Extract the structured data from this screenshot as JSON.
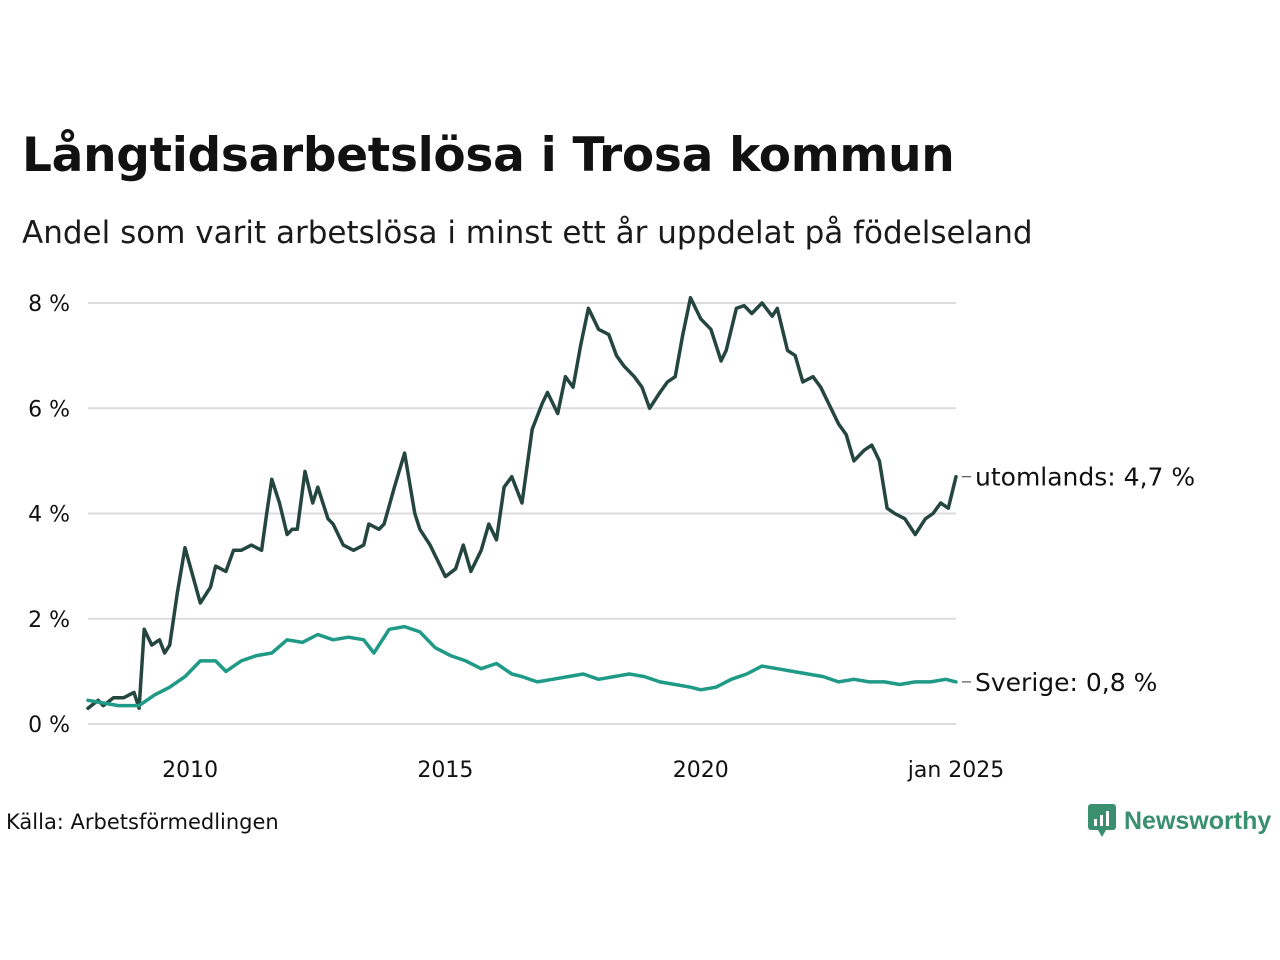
{
  "title": "Långtidsarbetslösa i Trosa kommun",
  "subtitle": "Andel som varit arbetslösa i minst ett år uppdelat på födelseland",
  "source": "Källa: Arbetsförmedlingen",
  "brand": {
    "name": "Newsworthy",
    "icon": "newsworthy-logo-icon",
    "color": "#3a8f6e"
  },
  "chart_data": {
    "type": "line",
    "title": "Långtidsarbetslösa i Trosa kommun",
    "subtitle": "Andel som varit arbetslösa i minst ett år uppdelat på födelseland",
    "xlabel": "",
    "ylabel": "",
    "xlim": [
      2008.0,
      2025.0
    ],
    "ylim": [
      0,
      8
    ],
    "grid": true,
    "legend": "none (end labels)",
    "y_ticks": [
      0,
      2,
      4,
      6,
      8
    ],
    "y_tick_labels": [
      "0 %",
      "2 %",
      "4 %",
      "6 %",
      "8 %"
    ],
    "x_ticks": [
      2010,
      2015,
      2020,
      2025
    ],
    "x_tick_labels": [
      "2010",
      "2015",
      "2020",
      "jan 2025"
    ],
    "series": [
      {
        "name": "utomlands",
        "color": "#25463f",
        "end_label": "utomlands: 4,7 %",
        "x": [
          2008.0,
          2008.2,
          2008.3,
          2008.5,
          2008.7,
          2008.9,
          2009.0,
          2009.1,
          2009.25,
          2009.4,
          2009.5,
          2009.6,
          2009.75,
          2009.9,
          2010.0,
          2010.2,
          2010.4,
          2010.5,
          2010.7,
          2010.85,
          2011.0,
          2011.2,
          2011.4,
          2011.5,
          2011.6,
          2011.75,
          2011.9,
          2012.0,
          2012.1,
          2012.25,
          2012.4,
          2012.5,
          2012.7,
          2012.8,
          2013.0,
          2013.2,
          2013.4,
          2013.5,
          2013.7,
          2013.8,
          2014.0,
          2014.2,
          2014.4,
          2014.5,
          2014.7,
          2014.85,
          2015.0,
          2015.2,
          2015.35,
          2015.5,
          2015.7,
          2015.85,
          2016.0,
          2016.15,
          2016.3,
          2016.5,
          2016.7,
          2016.9,
          2017.0,
          2017.2,
          2017.35,
          2017.5,
          2017.65,
          2017.8,
          2018.0,
          2018.2,
          2018.35,
          2018.5,
          2018.7,
          2018.85,
          2019.0,
          2019.2,
          2019.35,
          2019.5,
          2019.65,
          2019.8,
          2020.0,
          2020.2,
          2020.4,
          2020.5,
          2020.7,
          2020.85,
          2021.0,
          2021.2,
          2021.4,
          2021.5,
          2021.7,
          2021.85,
          2022.0,
          2022.2,
          2022.35,
          2022.5,
          2022.7,
          2022.85,
          2023.0,
          2023.2,
          2023.35,
          2023.5,
          2023.65,
          2023.8,
          2024.0,
          2024.2,
          2024.4,
          2024.55,
          2024.7,
          2024.85,
          2025.0
        ],
        "y": [
          0.3,
          0.45,
          0.35,
          0.5,
          0.5,
          0.6,
          0.3,
          1.8,
          1.5,
          1.6,
          1.35,
          1.5,
          2.5,
          3.35,
          3.0,
          2.3,
          2.6,
          3.0,
          2.9,
          3.3,
          3.3,
          3.4,
          3.3,
          4.0,
          4.65,
          4.2,
          3.6,
          3.7,
          3.7,
          4.8,
          4.2,
          4.5,
          3.9,
          3.8,
          3.4,
          3.3,
          3.4,
          3.8,
          3.7,
          3.8,
          4.5,
          5.15,
          4.0,
          3.7,
          3.4,
          3.1,
          2.8,
          2.95,
          3.4,
          2.9,
          3.3,
          3.8,
          3.5,
          4.5,
          4.7,
          4.2,
          5.6,
          6.1,
          6.3,
          5.9,
          6.6,
          6.4,
          7.2,
          7.9,
          7.5,
          7.4,
          7.0,
          6.8,
          6.6,
          6.4,
          6.0,
          6.3,
          6.5,
          6.6,
          7.4,
          8.1,
          7.7,
          7.5,
          6.9,
          7.1,
          7.9,
          7.95,
          7.8,
          8.0,
          7.75,
          7.9,
          7.1,
          7.0,
          6.5,
          6.6,
          6.4,
          6.1,
          5.7,
          5.5,
          5.0,
          5.2,
          5.3,
          5.0,
          4.1,
          4.0,
          3.9,
          3.6,
          3.9,
          4.0,
          4.2,
          4.1,
          4.7
        ]
      },
      {
        "name": "Sverige",
        "color": "#1f9a86",
        "end_label": "Sverige: 0,8 %",
        "x": [
          2008.0,
          2008.3,
          2008.6,
          2009.0,
          2009.3,
          2009.6,
          2009.9,
          2010.2,
          2010.5,
          2010.7,
          2011.0,
          2011.3,
          2011.6,
          2011.9,
          2012.2,
          2012.5,
          2012.8,
          2013.1,
          2013.4,
          2013.6,
          2013.9,
          2014.2,
          2014.5,
          2014.8,
          2015.1,
          2015.4,
          2015.7,
          2016.0,
          2016.3,
          2016.5,
          2016.8,
          2017.1,
          2017.4,
          2017.7,
          2018.0,
          2018.3,
          2018.6,
          2018.9,
          2019.2,
          2019.5,
          2019.8,
          2020.0,
          2020.3,
          2020.6,
          2020.9,
          2021.2,
          2021.5,
          2021.8,
          2022.1,
          2022.4,
          2022.7,
          2023.0,
          2023.3,
          2023.6,
          2023.9,
          2024.2,
          2024.5,
          2024.8,
          2025.0
        ],
        "y": [
          0.45,
          0.4,
          0.35,
          0.35,
          0.55,
          0.7,
          0.9,
          1.2,
          1.2,
          1.0,
          1.2,
          1.3,
          1.35,
          1.6,
          1.55,
          1.7,
          1.6,
          1.65,
          1.6,
          1.35,
          1.8,
          1.85,
          1.75,
          1.45,
          1.3,
          1.2,
          1.05,
          1.15,
          0.95,
          0.9,
          0.8,
          0.85,
          0.9,
          0.95,
          0.85,
          0.9,
          0.95,
          0.9,
          0.8,
          0.75,
          0.7,
          0.65,
          0.7,
          0.85,
          0.95,
          1.1,
          1.05,
          1.0,
          0.95,
          0.9,
          0.8,
          0.85,
          0.8,
          0.8,
          0.75,
          0.8,
          0.8,
          0.85,
          0.8
        ]
      }
    ]
  }
}
